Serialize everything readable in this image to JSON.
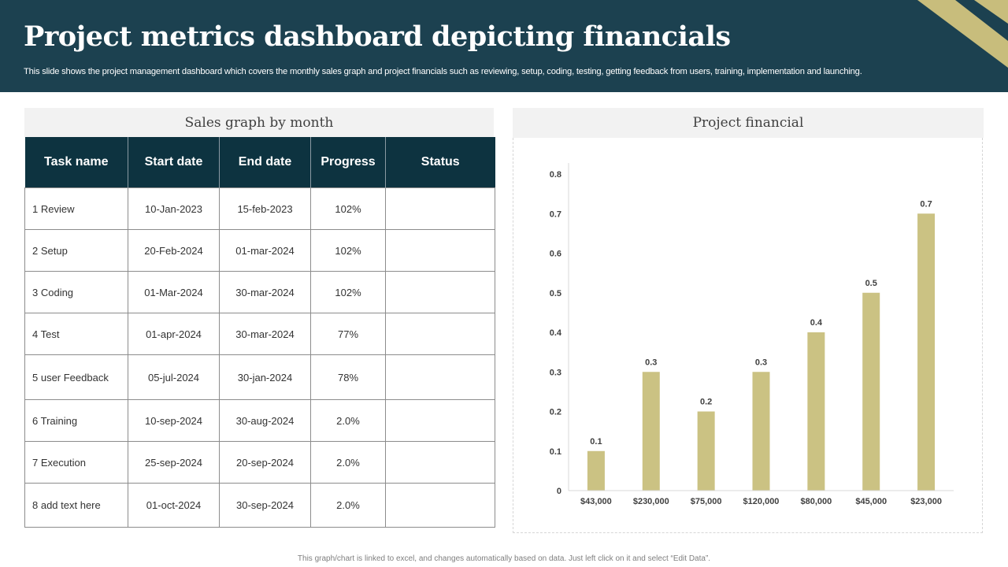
{
  "header": {
    "title": "Project metrics dashboard depicting financials",
    "subtitle": "This slide shows the project management dashboard which covers the monthly sales graph and project financials such as reviewing, setup, coding, testing, getting feedback from users, training, implementation and launching."
  },
  "left_panel": {
    "title": "Sales graph by month",
    "columns": [
      "Task name",
      "Start date",
      "End date",
      "Progress",
      "Status"
    ],
    "rows": [
      {
        "task": "1 Review",
        "start": "10-Jan-2023",
        "end": "15-feb-2023",
        "progress": "102%",
        "status": ""
      },
      {
        "task": "2 Setup",
        "start": "20-Feb-2024",
        "end": "01-mar-2024",
        "progress": "102%",
        "status": ""
      },
      {
        "task": "3 Coding",
        "start": "01-Mar-2024",
        "end": "30-mar-2024",
        "progress": "102%",
        "status": ""
      },
      {
        "task": "4 Test",
        "start": "01-apr-2024",
        "end": "30-mar-2024",
        "progress": "77%",
        "status": ""
      },
      {
        "task": "5 user Feedback",
        "start": "05-jul-2024",
        "end": "30-jan-2024",
        "progress": "78%",
        "status": ""
      },
      {
        "task": "6 Training",
        "start": "10-sep-2024",
        "end": "30-aug-2024",
        "progress": "2.0%",
        "status": ""
      },
      {
        "task": "7 Execution",
        "start": "25-sep-2024",
        "end": "20-sep-2024",
        "progress": "2.0%",
        "status": ""
      },
      {
        "task": "8 add text here",
        "start": "01-oct-2024",
        "end": "30-sep-2024",
        "progress": "2.0%",
        "status": ""
      }
    ]
  },
  "right_panel": {
    "title": "Project financial"
  },
  "chart_data": {
    "type": "bar",
    "title": "Project financial",
    "categories": [
      "$43,000",
      "$230,000",
      "$75,000",
      "$120,000",
      "$80,000",
      "$45,000",
      "$23,000"
    ],
    "values": [
      0.1,
      0.3,
      0.2,
      0.3,
      0.4,
      0.5,
      0.7
    ],
    "data_labels": [
      "0.1",
      "0.3",
      "0.2",
      "0.3",
      "0.4",
      "0.5",
      "0.7"
    ],
    "yticks": [
      "0",
      "0.1",
      "0.2",
      "0.3",
      "0.4",
      "0.5",
      "0.6",
      "0.7",
      "0.8"
    ],
    "ylim": [
      0,
      0.8
    ],
    "xlabel": "",
    "ylabel": "",
    "grid": false,
    "bar_color": "#cbc283"
  },
  "colors": {
    "header_bg": "#1c4150",
    "table_header_bg": "#0d3340",
    "accent_gold": "#c8bd7c"
  },
  "footer": {
    "note": "This graph/chart is linked to excel, and changes automatically based on data. Just left click on it and select “Edit Data”."
  }
}
